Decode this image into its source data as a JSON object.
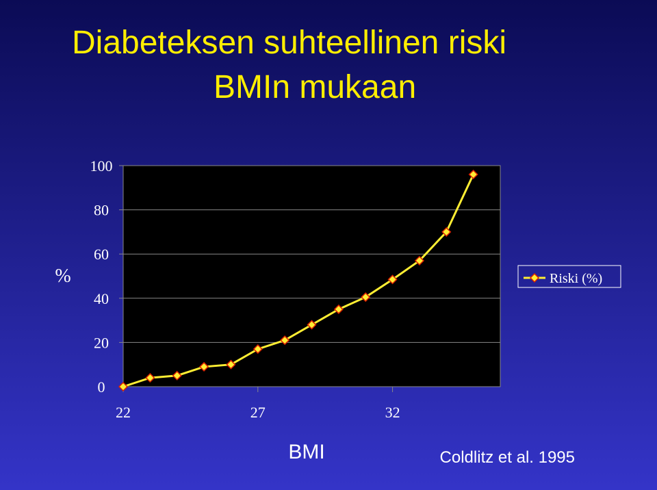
{
  "chart_data": {
    "type": "line",
    "title": [
      "Diabeteksen suhteellinen riski",
      "BMIn mukaan"
    ],
    "x_label": "BMI",
    "y_label": "%",
    "annotation": "Coldlitz et al. 1995",
    "x": [
      22,
      23,
      24,
      25,
      26,
      27,
      28,
      29,
      30,
      31,
      32,
      33,
      34,
      35
    ],
    "series": [
      {
        "name": "Riski (%)",
        "color": "#ffee33",
        "values": [
          0,
          4,
          5,
          9,
          10,
          17,
          21,
          28,
          35,
          40.5,
          48.5,
          57,
          70,
          96
        ]
      }
    ],
    "xlim": [
      22,
      36
    ],
    "xticks": [
      22,
      27,
      32
    ],
    "ylim": [
      0,
      100
    ],
    "yticks": [
      0,
      20,
      40,
      60,
      80,
      100
    ],
    "grid": true,
    "legend": "right"
  }
}
